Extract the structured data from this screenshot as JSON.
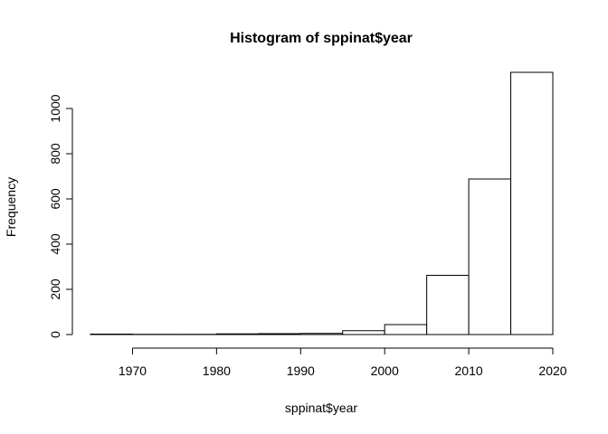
{
  "chart_data": {
    "type": "bar",
    "title": "Histogram of sppinat$year",
    "xlabel": "sppinat$year",
    "ylabel": "Frequency",
    "bins": [
      {
        "start": 1965,
        "end": 1970,
        "count": 2
      },
      {
        "start": 1970,
        "end": 1975,
        "count": 1
      },
      {
        "start": 1975,
        "end": 1980,
        "count": 1
      },
      {
        "start": 1980,
        "end": 1985,
        "count": 3
      },
      {
        "start": 1985,
        "end": 1990,
        "count": 4
      },
      {
        "start": 1990,
        "end": 1995,
        "count": 5
      },
      {
        "start": 1995,
        "end": 2000,
        "count": 17
      },
      {
        "start": 2000,
        "end": 2005,
        "count": 44
      },
      {
        "start": 2005,
        "end": 2010,
        "count": 262
      },
      {
        "start": 2010,
        "end": 2015,
        "count": 688
      },
      {
        "start": 2015,
        "end": 2020,
        "count": 1160
      }
    ],
    "xlim": [
      1965,
      2020
    ],
    "ylim": [
      0,
      1200
    ],
    "xticks": [
      1970,
      1980,
      1990,
      2000,
      2010,
      2020
    ],
    "yticks": [
      0,
      200,
      400,
      600,
      800,
      1000
    ],
    "grid": false,
    "bar_fill": "#ffffff",
    "bar_stroke": "#000000"
  }
}
